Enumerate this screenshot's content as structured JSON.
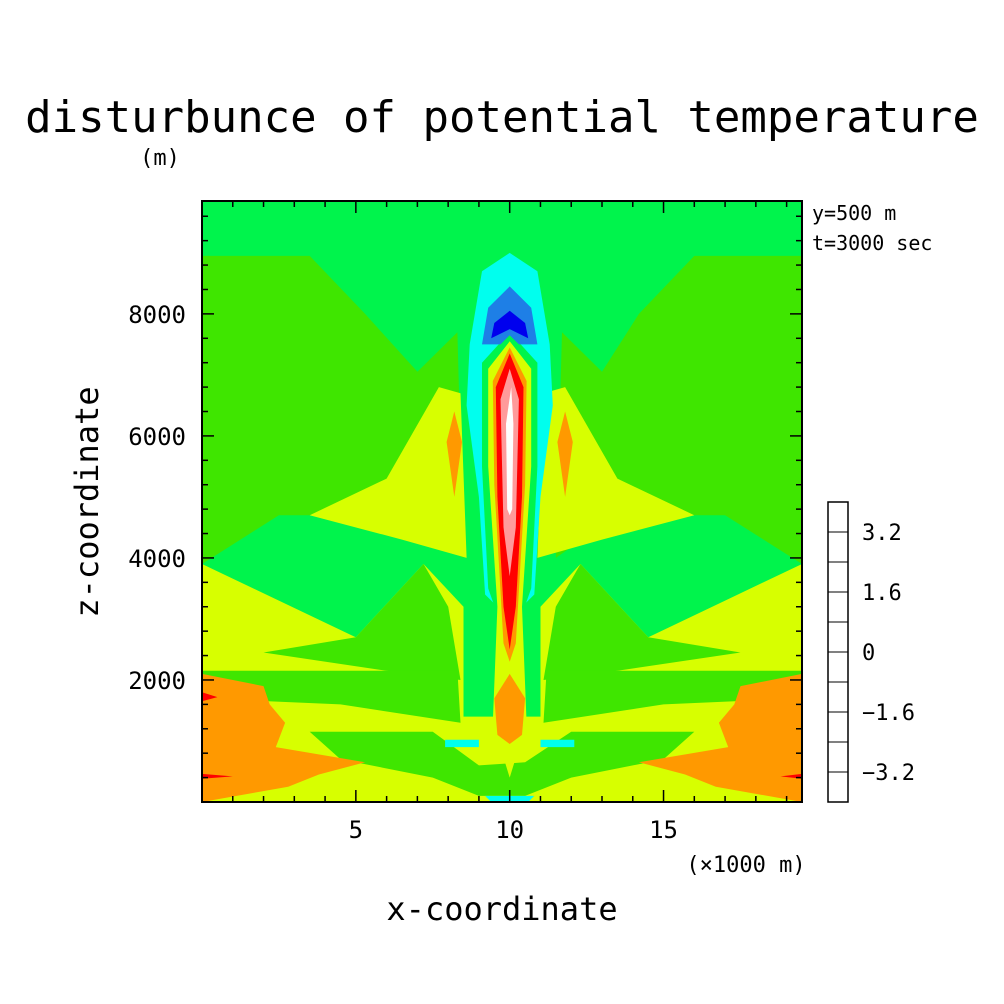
{
  "chart_data": {
    "type": "heatmap",
    "title": "disturbunce of potential temperature",
    "ylabel": "z-coordinate",
    "xlabel": "x-coordinate",
    "y_unit": "(m)",
    "x_unit": "(×1000 m)",
    "annotations": [
      "y=500 m",
      "t=3000 sec"
    ],
    "xlim": [
      0,
      19.5
    ],
    "ylim": [
      0,
      9850
    ],
    "x_ticks": [
      5,
      10,
      15
    ],
    "y_ticks": [
      2000,
      4000,
      6000,
      8000
    ],
    "x_tick_labels": [
      "5",
      "10",
      "15"
    ],
    "y_tick_labels": [
      "2000",
      "4000",
      "6000",
      "8000"
    ],
    "colorbar": {
      "levels": [
        -4.0,
        -3.2,
        -2.4,
        -1.6,
        -0.8,
        0,
        0.8,
        1.6,
        2.4,
        3.2,
        4.0
      ],
      "colors": [
        "#7f00a8",
        "#0000ee",
        "#1e7fe6",
        "#00ffee",
        "#00f44c",
        "#3fe600",
        "#d7ff00",
        "#ff9900",
        "#ff0000",
        "#ff9a9a"
      ],
      "tick_values": [
        3.2,
        1.6,
        0,
        -1.6,
        -3.2
      ],
      "tick_labels": [
        "3.2",
        "1.6",
        "0",
        "−1.6",
        "−3.2"
      ]
    },
    "background_level_color": "#00f44c",
    "regions": [
      {
        "name": "upper-green-left",
        "color": "#3fe600",
        "points": [
          [
            0,
            8950
          ],
          [
            3.5,
            8950
          ],
          [
            5.3,
            8000
          ],
          [
            7.0,
            7050
          ],
          [
            8.3,
            7700
          ],
          [
            8.5,
            4000
          ],
          [
            6.0,
            4700
          ],
          [
            2.5,
            4700
          ],
          [
            0,
            3900
          ]
        ]
      },
      {
        "name": "upper-green-right",
        "color": "#3fe600",
        "points": [
          [
            19.5,
            8950
          ],
          [
            16.0,
            8950
          ],
          [
            14.2,
            8000
          ],
          [
            13.0,
            7050
          ],
          [
            11.7,
            7700
          ],
          [
            11.5,
            4000
          ],
          [
            13.5,
            4700
          ],
          [
            17.0,
            4700
          ],
          [
            19.5,
            3900
          ]
        ]
      },
      {
        "name": "lower-yellow-band",
        "color": "#d7ff00",
        "points": [
          [
            0,
            3900
          ],
          [
            2.5,
            3300
          ],
          [
            5.0,
            2700
          ],
          [
            7.2,
            3900
          ],
          [
            8.5,
            3200
          ],
          [
            8.5,
            1400
          ],
          [
            11.0,
            1400
          ],
          [
            11.0,
            3200
          ],
          [
            12.3,
            3900
          ],
          [
            14.5,
            2700
          ],
          [
            17.0,
            3300
          ],
          [
            19.5,
            3900
          ],
          [
            19.5,
            0
          ],
          [
            0,
            0
          ]
        ]
      },
      {
        "name": "lower-green-pocket-left",
        "color": "#3fe600",
        "points": [
          [
            2.0,
            2450
          ],
          [
            5.0,
            2700
          ],
          [
            7.2,
            3900
          ],
          [
            8.0,
            3200
          ],
          [
            8.4,
            2000
          ],
          [
            6.0,
            2150
          ]
        ]
      },
      {
        "name": "lower-green-pocket-right",
        "color": "#3fe600",
        "points": [
          [
            17.5,
            2450
          ],
          [
            14.5,
            2700
          ],
          [
            12.3,
            3900
          ],
          [
            11.5,
            3200
          ],
          [
            11.1,
            2000
          ],
          [
            13.5,
            2150
          ]
        ]
      },
      {
        "name": "upper-yellow-left",
        "color": "#d7ff00",
        "points": [
          [
            3.5,
            4700
          ],
          [
            6.0,
            5300
          ],
          [
            7.7,
            6800
          ],
          [
            8.4,
            6700
          ],
          [
            8.6,
            4000
          ],
          [
            6.5,
            4300
          ]
        ]
      },
      {
        "name": "upper-yellow-right",
        "color": "#d7ff00",
        "points": [
          [
            16.0,
            4700
          ],
          [
            13.5,
            5300
          ],
          [
            11.8,
            6800
          ],
          [
            11.1,
            6700
          ],
          [
            10.9,
            4000
          ],
          [
            13.0,
            4300
          ]
        ]
      },
      {
        "name": "orange-streak-left",
        "color": "#ff9900",
        "points": [
          [
            7.95,
            5900
          ],
          [
            8.2,
            5000
          ],
          [
            8.45,
            5900
          ],
          [
            8.2,
            6400
          ]
        ]
      },
      {
        "name": "orange-streak-right",
        "color": "#ff9900",
        "points": [
          [
            11.55,
            5900
          ],
          [
            11.8,
            5000
          ],
          [
            12.05,
            5900
          ],
          [
            11.8,
            6400
          ]
        ]
      },
      {
        "name": "green-ring-mid-left",
        "color": "#3fe600",
        "points": [
          [
            0,
            2150
          ],
          [
            8.3,
            2150
          ],
          [
            8.4,
            1300
          ],
          [
            4.5,
            1600
          ],
          [
            0,
            1700
          ]
        ]
      },
      {
        "name": "green-ring-mid-right",
        "color": "#3fe600",
        "points": [
          [
            19.5,
            2150
          ],
          [
            11.2,
            2150
          ],
          [
            11.1,
            1300
          ],
          [
            15.0,
            1600
          ],
          [
            19.5,
            1700
          ]
        ]
      },
      {
        "name": "green-ring-low",
        "color": "#3fe600",
        "points": [
          [
            3.5,
            1150
          ],
          [
            7.5,
            1150
          ],
          [
            9.0,
            600
          ],
          [
            10.5,
            650
          ],
          [
            12.0,
            1150
          ],
          [
            16.0,
            1150
          ],
          [
            15.0,
            700
          ],
          [
            12.0,
            400
          ],
          [
            10.5,
            100
          ],
          [
            9.0,
            100
          ],
          [
            7.5,
            400
          ],
          [
            4.5,
            700
          ]
        ]
      },
      {
        "name": "orange-bottom-left",
        "color": "#ff9900",
        "points": [
          [
            0,
            2100
          ],
          [
            2.0,
            1900
          ],
          [
            2.2,
            1600
          ],
          [
            2.7,
            1300
          ],
          [
            2.4,
            900
          ],
          [
            5.3,
            650
          ],
          [
            3.8,
            450
          ],
          [
            2.8,
            250
          ],
          [
            0,
            0
          ]
        ]
      },
      {
        "name": "orange-bottom-right",
        "color": "#ff9900",
        "points": [
          [
            19.5,
            2100
          ],
          [
            17.5,
            1900
          ],
          [
            17.3,
            1600
          ],
          [
            16.8,
            1300
          ],
          [
            17.1,
            900
          ],
          [
            14.2,
            650
          ],
          [
            15.7,
            450
          ],
          [
            16.7,
            250
          ],
          [
            19.5,
            0
          ]
        ]
      },
      {
        "name": "cyan-ring",
        "color": "#00ffee",
        "points": [
          [
            10.0,
            9000
          ],
          [
            10.9,
            8700
          ],
          [
            11.3,
            7500
          ],
          [
            11.4,
            6500
          ],
          [
            11.0,
            5000
          ],
          [
            10.8,
            3400
          ],
          [
            10.0,
            3000
          ],
          [
            9.2,
            3400
          ],
          [
            9.0,
            5000
          ],
          [
            8.6,
            6500
          ],
          [
            8.7,
            7500
          ],
          [
            9.1,
            8700
          ]
        ]
      },
      {
        "name": "green-column",
        "color": "#00f44c",
        "points": [
          [
            10.0,
            7700
          ],
          [
            10.9,
            7200
          ],
          [
            10.9,
            5500
          ],
          [
            10.7,
            3500
          ],
          [
            10.0,
            2500
          ],
          [
            9.3,
            3500
          ],
          [
            9.1,
            5500
          ],
          [
            9.1,
            7200
          ]
        ]
      },
      {
        "name": "blue-core",
        "color": "#1e7fe6",
        "points": [
          [
            10.0,
            8450
          ],
          [
            10.7,
            8100
          ],
          [
            10.9,
            7500
          ],
          [
            10.3,
            7500
          ],
          [
            10.0,
            7650
          ],
          [
            9.7,
            7500
          ],
          [
            9.1,
            7500
          ],
          [
            9.3,
            8100
          ]
        ]
      },
      {
        "name": "deep-blue-core",
        "color": "#0000ee",
        "points": [
          [
            10.0,
            8050
          ],
          [
            10.5,
            7850
          ],
          [
            10.6,
            7600
          ],
          [
            10.0,
            7750
          ],
          [
            9.4,
            7600
          ],
          [
            9.5,
            7850
          ]
        ]
      },
      {
        "name": "yellow-column",
        "color": "#d7ff00",
        "points": [
          [
            10.0,
            7550
          ],
          [
            10.7,
            7100
          ],
          [
            10.7,
            5500
          ],
          [
            10.4,
            3200
          ],
          [
            10.55,
            1300
          ],
          [
            10.0,
            400
          ],
          [
            9.45,
            1300
          ],
          [
            9.6,
            3200
          ],
          [
            9.3,
            5500
          ],
          [
            9.3,
            7100
          ]
        ]
      },
      {
        "name": "orange-column",
        "color": "#ff9900",
        "points": [
          [
            10.0,
            7450
          ],
          [
            10.55,
            6900
          ],
          [
            10.5,
            5200
          ],
          [
            10.2,
            2600
          ],
          [
            10.0,
            2300
          ],
          [
            9.8,
            2600
          ],
          [
            9.5,
            5200
          ],
          [
            9.45,
            6900
          ]
        ]
      },
      {
        "name": "orange-blob-low",
        "color": "#ff9900",
        "points": [
          [
            10.0,
            2100
          ],
          [
            10.5,
            1700
          ],
          [
            10.4,
            1100
          ],
          [
            10.0,
            950
          ],
          [
            9.6,
            1100
          ],
          [
            9.5,
            1700
          ]
        ]
      },
      {
        "name": "red-core",
        "color": "#ff0000",
        "points": [
          [
            10.0,
            7350
          ],
          [
            10.45,
            6800
          ],
          [
            10.4,
            5000
          ],
          [
            10.2,
            3200
          ],
          [
            10.0,
            2500
          ],
          [
            9.8,
            3200
          ],
          [
            9.6,
            5000
          ],
          [
            9.55,
            6800
          ]
        ]
      },
      {
        "name": "pink-core",
        "color": "#ff9a9a",
        "points": [
          [
            10.0,
            7100
          ],
          [
            10.3,
            6600
          ],
          [
            10.2,
            4500
          ],
          [
            10.0,
            3700
          ],
          [
            9.8,
            4500
          ],
          [
            9.7,
            6600
          ]
        ]
      },
      {
        "name": "white-core",
        "color": "#ffffff",
        "points": [
          [
            10.05,
            6800
          ],
          [
            10.12,
            6200
          ],
          [
            10.08,
            4800
          ],
          [
            10.0,
            4700
          ],
          [
            9.92,
            4800
          ],
          [
            9.88,
            6200
          ]
        ]
      },
      {
        "name": "cyan-bottom",
        "color": "#00ffee",
        "points": [
          [
            9.2,
            100
          ],
          [
            10.8,
            100
          ],
          [
            10.6,
            0
          ],
          [
            9.4,
            0
          ]
        ]
      },
      {
        "name": "cyan-streak-left",
        "color": "#00ffee",
        "points": [
          [
            7.9,
            1020
          ],
          [
            9.0,
            1020
          ],
          [
            9.0,
            900
          ],
          [
            7.9,
            900
          ]
        ]
      },
      {
        "name": "cyan-streak-right",
        "color": "#00ffee",
        "points": [
          [
            11.0,
            1020
          ],
          [
            12.1,
            1020
          ],
          [
            12.1,
            900
          ],
          [
            11.0,
            900
          ]
        ]
      },
      {
        "name": "red-edge-left-1",
        "color": "#ff0000",
        "points": [
          [
            0,
            1800
          ],
          [
            0.5,
            1720
          ],
          [
            0,
            1650
          ]
        ]
      },
      {
        "name": "red-edge-left-2",
        "color": "#ff0000",
        "points": [
          [
            0,
            460
          ],
          [
            1.0,
            420
          ],
          [
            0,
            380
          ]
        ]
      },
      {
        "name": "red-edge-right",
        "color": "#ff0000",
        "points": [
          [
            19.5,
            460
          ],
          [
            18.8,
            420
          ],
          [
            19.5,
            380
          ]
        ]
      }
    ]
  }
}
